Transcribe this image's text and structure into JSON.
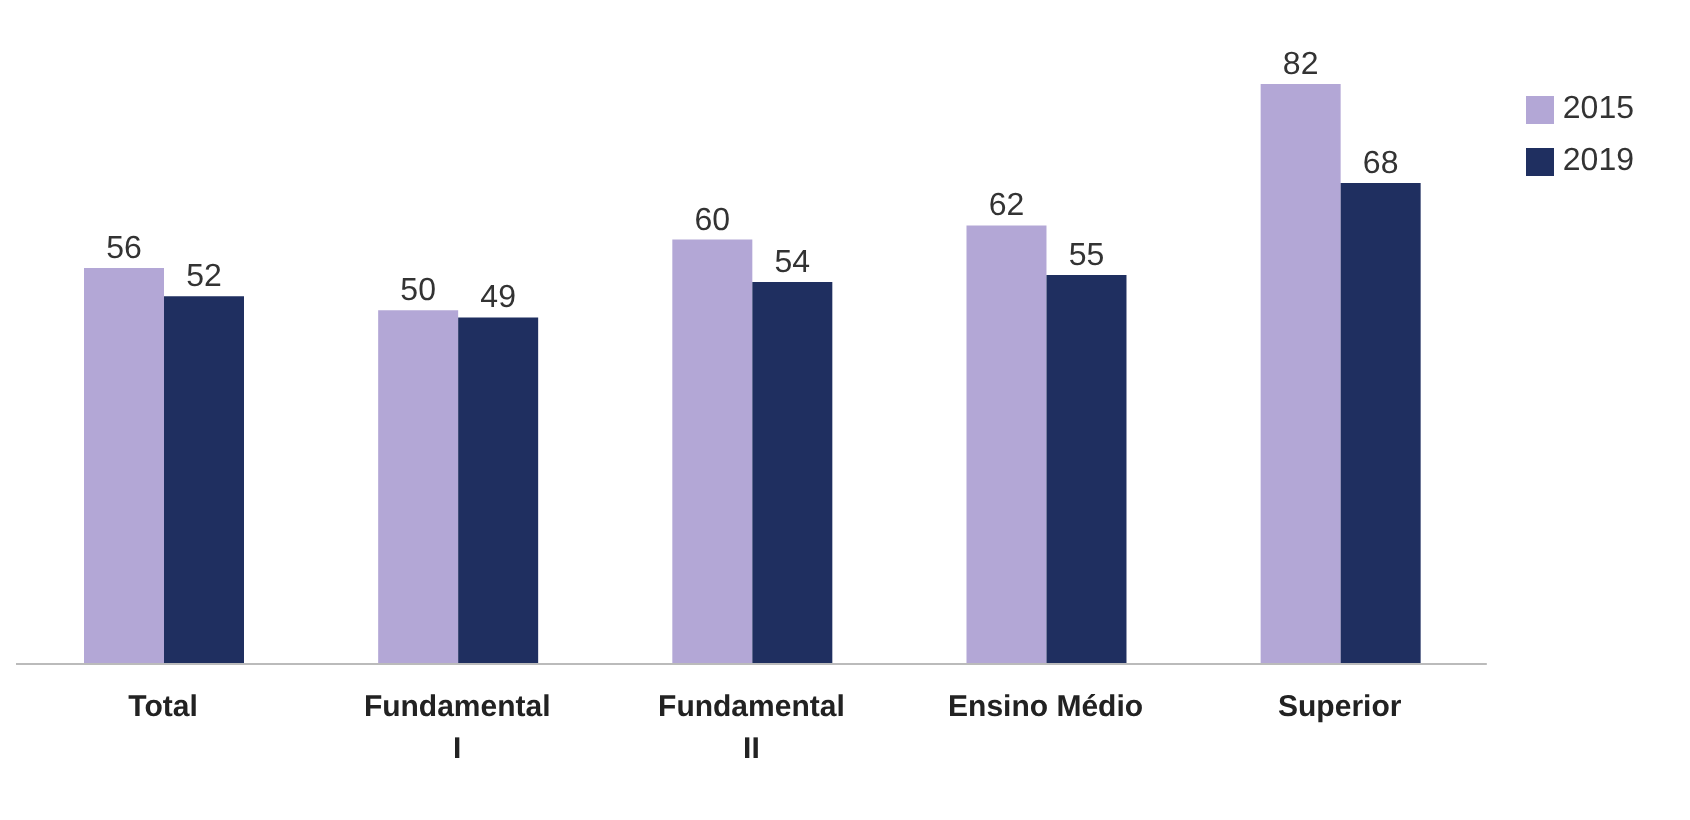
{
  "chart_data": {
    "type": "bar",
    "categories": [
      "Total",
      "Fundamental I",
      "Fundamental II",
      "Ensino Médio",
      "Superior"
    ],
    "series": [
      {
        "name": "2015",
        "color": "#b3a7d6",
        "values": [
          56,
          50,
          60,
          62,
          82
        ]
      },
      {
        "name": "2019",
        "color": "#1f2f60",
        "values": [
          52,
          49,
          54,
          55,
          68
        ]
      }
    ],
    "data_labels": true,
    "legend": "top right",
    "grid": false
  }
}
